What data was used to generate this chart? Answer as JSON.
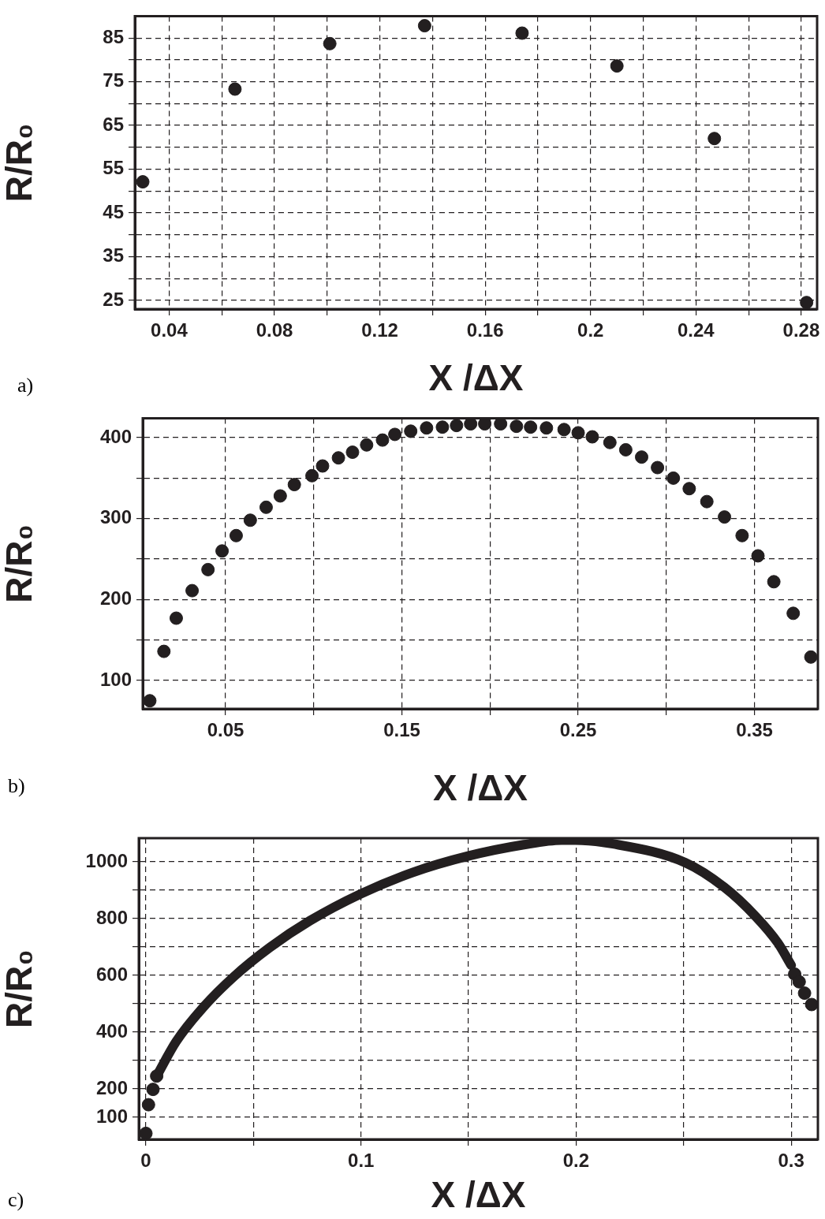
{
  "chart_data": [
    {
      "type": "scatter",
      "xlabel": "X /ΔX",
      "ylabel": "R/R₀",
      "annotations": [
        "a)"
      ],
      "grid": true,
      "marker": "circle",
      "color": "#231f20",
      "xlim": [
        0.027,
        0.286
      ],
      "ylim": [
        23,
        90
      ],
      "xticks": [
        0.04,
        {
          "value": 0.06,
          "label": null
        },
        0.08,
        {
          "value": 0.1,
          "label": null
        },
        0.12,
        {
          "value": 0.14,
          "label": null
        },
        0.16,
        {
          "value": 0.18,
          "label": null
        },
        0.2,
        {
          "value": 0.22,
          "label": null
        },
        0.24,
        {
          "value": 0.26,
          "label": null
        },
        0.28
      ],
      "yticks": [
        25,
        {
          "value": 30,
          "label": null
        },
        35,
        {
          "value": 40,
          "label": null
        },
        45,
        {
          "value": 50,
          "label": null
        },
        55,
        {
          "value": 60,
          "label": null
        },
        65,
        {
          "value": 70,
          "label": null
        },
        75,
        {
          "value": 80,
          "label": null
        },
        85
      ],
      "x": [
        0.03,
        0.065,
        0.101,
        0.137,
        0.174,
        0.21,
        0.247,
        0.282
      ],
      "values": [
        52.1,
        73.3,
        83.7,
        87.8,
        86.1,
        78.6,
        62.0,
        24.5
      ]
    },
    {
      "type": "scatter",
      "xlabel": "X /ΔX",
      "ylabel": "R/R₀",
      "annotations": [
        "b)"
      ],
      "grid": true,
      "marker": "circle",
      "color": "#231f20",
      "xlim": [
        0.003,
        0.386
      ],
      "ylim": [
        65,
        424
      ],
      "xticks": [
        0.05,
        {
          "value": 0.1,
          "label": null
        },
        0.15,
        {
          "value": 0.2,
          "label": null
        },
        0.25,
        {
          "value": 0.3,
          "label": null
        },
        0.35
      ],
      "yticks": [
        100,
        {
          "value": 150,
          "label": null
        },
        200,
        {
          "value": 250,
          "label": null
        },
        300,
        {
          "value": 350,
          "label": null
        },
        400
      ],
      "x": [
        0.007,
        0.015,
        0.022,
        0.031,
        0.04,
        0.048,
        0.056,
        0.064,
        0.073,
        0.081,
        0.089,
        0.099,
        0.105,
        0.114,
        0.122,
        0.13,
        0.139,
        0.146,
        0.155,
        0.164,
        0.173,
        0.181,
        0.189,
        0.197,
        0.206,
        0.215,
        0.223,
        0.232,
        0.242,
        0.25,
        0.258,
        0.268,
        0.277,
        0.286,
        0.295,
        0.304,
        0.313,
        0.323,
        0.333,
        0.343,
        0.352,
        0.361,
        0.372,
        0.382
      ],
      "values": [
        75,
        136,
        177,
        211,
        237,
        260,
        279,
        298,
        314,
        328,
        342,
        353,
        365,
        375,
        382,
        391,
        397,
        404,
        408,
        412,
        413,
        415,
        417,
        417,
        417,
        414,
        413,
        412,
        410,
        406,
        401,
        394,
        385,
        376,
        363,
        350,
        337,
        321,
        302,
        279,
        254,
        222,
        183,
        129
      ]
    },
    {
      "type": "scatter",
      "xlabel": "X /ΔX",
      "ylabel": "R/R₀",
      "annotations": [
        "c)"
      ],
      "grid": true,
      "xlim": [
        -0.0033,
        0.3124
      ],
      "ylim": [
        22,
        1083
      ],
      "xticks": [
        0,
        {
          "value": 0.05,
          "label": null
        },
        0.1,
        {
          "value": 0.15,
          "label": null
        },
        0.2,
        {
          "value": 0.25,
          "label": null
        },
        0.3
      ],
      "yticks": [
        100,
        200,
        {
          "value": 300,
          "label": null
        },
        400,
        {
          "value": 500,
          "label": null
        },
        600,
        {
          "value": 700,
          "label": null
        },
        800,
        {
          "value": 900,
          "label": null
        },
        1000
      ],
      "series": [
        {
          "type": "line",
          "marker": "none",
          "color": "#231f20",
          "x": [
            0.005,
            0.0141,
            0.0265,
            0.041,
            0.0576,
            0.0762,
            0.0999,
            0.1239,
            0.1498,
            0.1757,
            0.1933,
            0.1997,
            0.2171,
            0.2507,
            0.2689,
            0.2834,
            0.2938,
            0.3
          ],
          "values": [
            245,
            367,
            486,
            596,
            698,
            792,
            887,
            962,
            1020,
            1060,
            1076,
            1076,
            1063,
            997,
            910,
            808,
            714,
            635
          ]
        },
        {
          "type": "scatter",
          "marker": "circle",
          "color": "#231f20",
          "x": [
            0.0,
            0.0012,
            0.0033,
            0.005,
            0.3016,
            0.3037,
            0.3062,
            0.3095
          ],
          "values": [
            43,
            144,
            198,
            245,
            604,
            577,
            537,
            497
          ]
        }
      ]
    }
  ]
}
